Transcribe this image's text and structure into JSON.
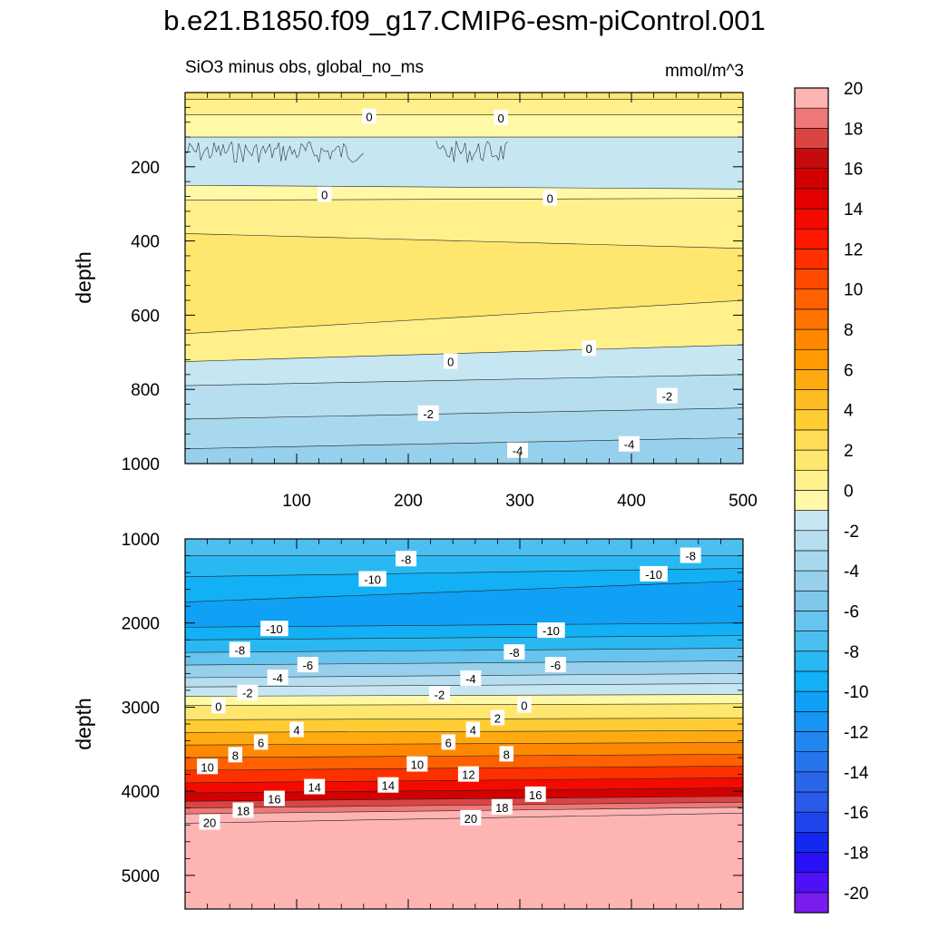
{
  "title": "b.e21.B1850.f09_g17.CMIP6-esm-piControl.001",
  "subtitle_left": "SiO3 minus obs, global_no_ms",
  "subtitle_right": "mmol/m^3",
  "chart_data": {
    "type": "heatmap",
    "x_tick_labels": [
      "100",
      "200",
      "300",
      "400",
      "500"
    ],
    "xlim": [
      0,
      500
    ],
    "colorbar": {
      "levels": [
        -20,
        -19,
        -18,
        -17,
        -16,
        -15,
        -14,
        -13,
        -12,
        -11,
        -10,
        -9,
        -8,
        -7,
        -6,
        -5,
        -4,
        -3,
        -2,
        -1,
        0,
        1,
        2,
        3,
        4,
        5,
        6,
        7,
        8,
        9,
        10,
        11,
        12,
        13,
        14,
        15,
        16,
        17,
        18,
        19,
        20
      ],
      "tick_labels": [
        "-20",
        "-18",
        "-16",
        "-14",
        "-12",
        "-10",
        "-8",
        "-6",
        "-4",
        "-2",
        "0",
        "2",
        "4",
        "6",
        "8",
        "10",
        "12",
        "14",
        "16",
        "18",
        "20"
      ],
      "colors": [
        "#7a1cf0",
        "#4f10f5",
        "#2a10f5",
        "#1428f0",
        "#1e44ee",
        "#2a5ae8",
        "#2a66e8",
        "#2576ec",
        "#2286f0",
        "#1894f2",
        "#10a0f5",
        "#12b0f5",
        "#2ab8f2",
        "#4cbff0",
        "#66c4ee",
        "#7fc8ea",
        "#96d0ec",
        "#a8d8ee",
        "#b6deef",
        "#c6e6f2",
        "#fff8a6",
        "#fff08c",
        "#ffe66e",
        "#ffdc55",
        "#ffcc33",
        "#ffbb22",
        "#ffaa10",
        "#ff9a00",
        "#ff8800",
        "#ff7400",
        "#ff6000",
        "#ff4a00",
        "#ff3000",
        "#ff1800",
        "#f50a00",
        "#e40000",
        "#d20000",
        "#c40c0c",
        "#dc4444",
        "#ee7878",
        "#ffb4b4"
      ]
    },
    "panels": [
      {
        "id": "upper",
        "ylabel": "depth",
        "ylim": [
          0,
          1000
        ],
        "y_tick_labels": [
          "200",
          "400",
          "600",
          "800",
          "1000"
        ],
        "bands": [
          {
            "top": [
              0,
              0
            ],
            "bottom": [
              18,
              18
            ],
            "value": 1
          },
          {
            "top": [
              18,
              18
            ],
            "bottom": [
              60,
              60
            ],
            "value": 0.5
          },
          {
            "top": [
              60,
              60
            ],
            "bottom": [
              120,
              120
            ],
            "value": -0.5
          },
          {
            "top": [
              120,
              120
            ],
            "bottom": [
              250,
              260
            ],
            "value": -1.5
          },
          {
            "top": [
              250,
              260
            ],
            "bottom": [
              290,
              285
            ],
            "value": -0.5
          },
          {
            "top": [
              290,
              285
            ],
            "bottom": [
              380,
              420
            ],
            "value": 0.5
          },
          {
            "top": [
              380,
              420
            ],
            "bottom": [
              650,
              560
            ],
            "value": 1.5
          },
          {
            "top": [
              650,
              560
            ],
            "bottom": [
              725,
              680
            ],
            "value": 0.5
          },
          {
            "top": [
              725,
              680
            ],
            "bottom": [
              1000,
              1000
            ],
            "value": -1.5
          },
          {
            "top": [
              790,
              760
            ],
            "bottom": [
              1000,
              1000
            ],
            "value": -2.5
          },
          {
            "top": [
              880,
              850
            ],
            "bottom": [
              1000,
              1000
            ],
            "value": -3.5
          },
          {
            "top": [
              960,
              930
            ],
            "bottom": [
              1000,
              1000
            ],
            "value": -4.5
          }
        ],
        "contour_labels": [
          {
            "text": "0",
            "x": 165,
            "y": 65
          },
          {
            "text": "0",
            "x": 283,
            "y": 68
          },
          {
            "text": "0",
            "x": 125,
            "y": 275
          },
          {
            "text": "0",
            "x": 327,
            "y": 285
          },
          {
            "text": "0",
            "x": 238,
            "y": 725
          },
          {
            "text": "0",
            "x": 362,
            "y": 690
          },
          {
            "text": "-2",
            "x": 218,
            "y": 865
          },
          {
            "text": "-2",
            "x": 432,
            "y": 818
          },
          {
            "text": "-4",
            "x": 298,
            "y": 965
          },
          {
            "text": "-4",
            "x": 398,
            "y": 948
          }
        ]
      },
      {
        "id": "lower",
        "ylabel": "depth",
        "ylim": [
          1000,
          5400
        ],
        "y_tick_labels": [
          "1000",
          "2000",
          "3000",
          "4000",
          "5000"
        ],
        "bands": [
          {
            "top": [
              1000,
              1000
            ],
            "bottom": [
              1200,
              1200
            ],
            "value": -8
          },
          {
            "top": [
              1200,
              1200
            ],
            "bottom": [
              1450,
              1350
            ],
            "value": -9
          },
          {
            "top": [
              1450,
              1350
            ],
            "bottom": [
              1750,
              1500
            ],
            "value": -10
          },
          {
            "top": [
              1750,
              1500
            ],
            "bottom": [
              2050,
              2000
            ],
            "value": -11
          },
          {
            "top": [
              2050,
              2000
            ],
            "bottom": [
              2200,
              2150
            ],
            "value": -10
          },
          {
            "top": [
              2200,
              2150
            ],
            "bottom": [
              2350,
              2300
            ],
            "value": -9
          },
          {
            "top": [
              2350,
              2300
            ],
            "bottom": [
              2500,
              2450
            ],
            "value": -7
          },
          {
            "top": [
              2500,
              2450
            ],
            "bottom": [
              2650,
              2600
            ],
            "value": -5
          },
          {
            "top": [
              2650,
              2600
            ],
            "bottom": [
              2760,
              2720
            ],
            "value": -3
          },
          {
            "top": [
              2760,
              2720
            ],
            "bottom": [
              2870,
              2850
            ],
            "value": -2
          },
          {
            "top": [
              2870,
              2850
            ],
            "bottom": [
              2980,
              2960
            ],
            "value": -1
          },
          {
            "top": [
              2980,
              2960
            ],
            "bottom": [
              3150,
              3130
            ],
            "value": 1
          },
          {
            "top": [
              3150,
              3130
            ],
            "bottom": [
              3300,
              3280
            ],
            "value": 3
          },
          {
            "top": [
              3300,
              3280
            ],
            "bottom": [
              3450,
              3420
            ],
            "value": 5
          },
          {
            "top": [
              3450,
              3420
            ],
            "bottom": [
              3600,
              3560
            ],
            "value": 7
          },
          {
            "top": [
              3600,
              3560
            ],
            "bottom": [
              3750,
              3700
            ],
            "value": 9
          },
          {
            "top": [
              3750,
              3700
            ],
            "bottom": [
              3900,
              3840
            ],
            "value": 11
          },
          {
            "top": [
              3900,
              3840
            ],
            "bottom": [
              4020,
              3960
            ],
            "value": 13
          },
          {
            "top": [
              4020,
              3960
            ],
            "bottom": [
              4120,
              4060
            ],
            "value": 15
          },
          {
            "top": [
              4120,
              4060
            ],
            "bottom": [
              4200,
              4130
            ],
            "value": 17
          },
          {
            "top": [
              4200,
              4130
            ],
            "bottom": [
              4270,
              4190
            ],
            "value": 18.5
          },
          {
            "top": [
              4270,
              4190
            ],
            "bottom": [
              4380,
              4260
            ],
            "value": 19.5
          },
          {
            "top": [
              4380,
              4260
            ],
            "bottom": [
              5400,
              5400
            ],
            "value": 20.5
          }
        ],
        "contour_labels": [
          {
            "text": "-8",
            "x": 198,
            "y": 1240
          },
          {
            "text": "-8",
            "x": 453,
            "y": 1200
          },
          {
            "text": "-10",
            "x": 168,
            "y": 1480
          },
          {
            "text": "-10",
            "x": 420,
            "y": 1420
          },
          {
            "text": "-10",
            "x": 80,
            "y": 2070
          },
          {
            "text": "-10",
            "x": 328,
            "y": 2090
          },
          {
            "text": "-8",
            "x": 49,
            "y": 2320
          },
          {
            "text": "-8",
            "x": 295,
            "y": 2350
          },
          {
            "text": "-6",
            "x": 110,
            "y": 2500
          },
          {
            "text": "-6",
            "x": 332,
            "y": 2500
          },
          {
            "text": "-4",
            "x": 83,
            "y": 2650
          },
          {
            "text": "-4",
            "x": 256,
            "y": 2660
          },
          {
            "text": "-2",
            "x": 56,
            "y": 2830
          },
          {
            "text": "-2",
            "x": 228,
            "y": 2850
          },
          {
            "text": "0",
            "x": 30,
            "y": 2990
          },
          {
            "text": "0",
            "x": 304,
            "y": 2980
          },
          {
            "text": "2",
            "x": 280,
            "y": 3130
          },
          {
            "text": "4",
            "x": 100,
            "y": 3270
          },
          {
            "text": "4",
            "x": 258,
            "y": 3270
          },
          {
            "text": "6",
            "x": 68,
            "y": 3420
          },
          {
            "text": "6",
            "x": 236,
            "y": 3420
          },
          {
            "text": "8",
            "x": 45,
            "y": 3570
          },
          {
            "text": "8",
            "x": 288,
            "y": 3560
          },
          {
            "text": "10",
            "x": 20,
            "y": 3710
          },
          {
            "text": "10",
            "x": 208,
            "y": 3680
          },
          {
            "text": "12",
            "x": 254,
            "y": 3800
          },
          {
            "text": "14",
            "x": 116,
            "y": 3950
          },
          {
            "text": "14",
            "x": 182,
            "y": 3930
          },
          {
            "text": "16",
            "x": 80,
            "y": 4090
          },
          {
            "text": "16",
            "x": 314,
            "y": 4040
          },
          {
            "text": "18",
            "x": 52,
            "y": 4230
          },
          {
            "text": "18",
            "x": 284,
            "y": 4190
          },
          {
            "text": "20",
            "x": 22,
            "y": 4370
          },
          {
            "text": "20",
            "x": 256,
            "y": 4320
          }
        ]
      }
    ]
  }
}
